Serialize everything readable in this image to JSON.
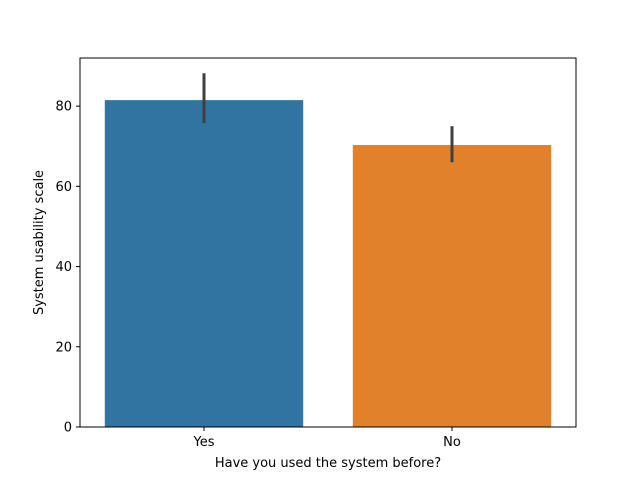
{
  "chart_data": {
    "type": "bar",
    "title": "",
    "xlabel": "Have you used the system before?",
    "ylabel": "System usability scale",
    "categories": [
      "Yes",
      "No"
    ],
    "values": [
      81.5,
      70.3
    ],
    "error_bars": [
      [
        75.8,
        88.2
      ],
      [
        66.0,
        75.0
      ]
    ],
    "colors": [
      "#3274a1",
      "#e1812c"
    ],
    "error_bar_color": "#3f3f3f",
    "ylim": [
      0,
      92
    ],
    "yticks": [
      0,
      20,
      40,
      60,
      80
    ],
    "grid": false,
    "legend": "none"
  }
}
